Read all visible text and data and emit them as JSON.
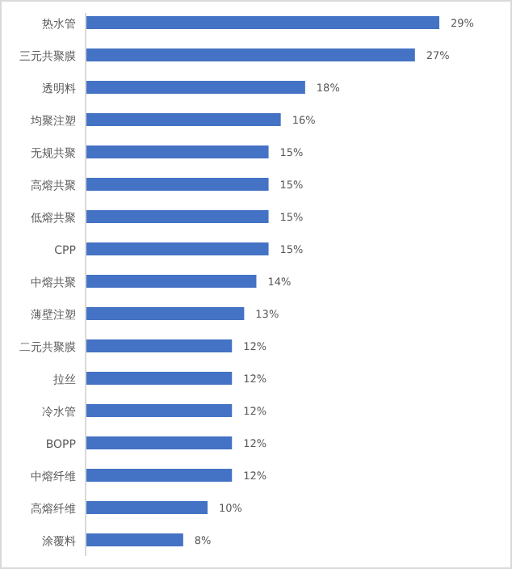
{
  "chart_data": {
    "type": "bar",
    "orientation": "horizontal",
    "categories": [
      "热水管",
      "三元共聚膜",
      "透明料",
      "均聚注塑",
      "无规共聚",
      "高熔共聚",
      "低熔共聚",
      "CPP",
      "中熔共聚",
      "薄壁注塑",
      "二元共聚膜",
      "拉丝",
      "冷水管",
      "BOPP",
      "中熔纤维",
      "高熔纤维",
      "涂覆料"
    ],
    "values": [
      29,
      27,
      18,
      16,
      15,
      15,
      15,
      15,
      14,
      13,
      12,
      12,
      12,
      12,
      12,
      10,
      8
    ],
    "value_labels": [
      "29%",
      "27%",
      "18%",
      "16%",
      "15%",
      "15%",
      "15%",
      "15%",
      "14%",
      "13%",
      "12%",
      "12%",
      "12%",
      "12%",
      "12%",
      "10%",
      "8%"
    ],
    "color": "#4472c4"
  }
}
